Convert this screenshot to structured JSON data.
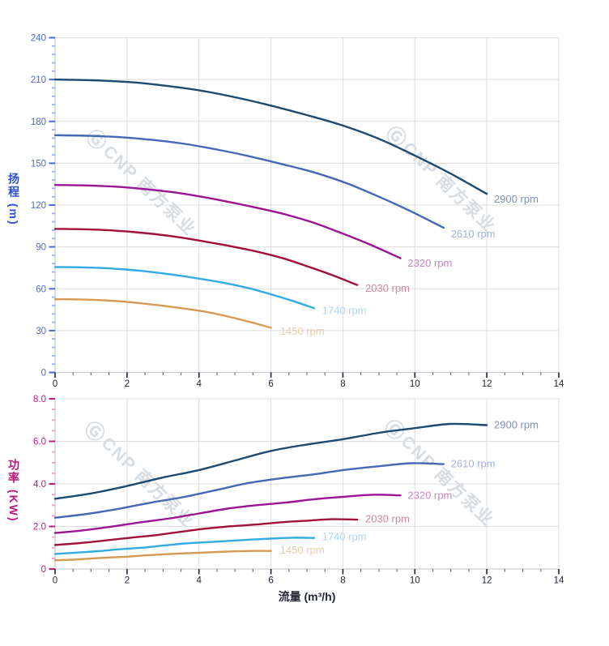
{
  "watermark": {
    "logo": "Ⓖ",
    "text": "CNP 南方泵业"
  },
  "chart_data": [
    {
      "type": "line",
      "name": "head-vs-flow",
      "xlabel": "",
      "ylabel": "扬程 (m)",
      "ylabel_vertical": "扬程 (m)",
      "xlim": [
        0,
        14
      ],
      "ylim": [
        0,
        240
      ],
      "x_ticks": [
        0,
        2,
        4,
        6,
        8,
        10,
        12,
        14
      ],
      "x_tick_labels": [
        "0",
        "2",
        "4",
        "6",
        "8",
        "10",
        "12",
        "14"
      ],
      "y_ticks": [
        0,
        30,
        60,
        90,
        120,
        150,
        180,
        210,
        240
      ],
      "y_tick_labels": [
        "0",
        "30",
        "60",
        "90",
        "120",
        "150",
        "180",
        "210",
        "240"
      ],
      "x_minor_step": 0.5,
      "y_minor_step": 6,
      "grid": true,
      "legend_position": "end-of-curve",
      "colors": {
        "y_title": "#2b50d4",
        "y_tick": "#4a67e0",
        "y_tick_minor": "#9fb0ee",
        "x_tick": "#1b2233",
        "x_tick_minor": "#6a6f78",
        "axis_line": "#c9ccd1",
        "grid": "#dcdcdc",
        "x_title": "#232938"
      },
      "series": [
        {
          "name": "2900 rpm",
          "rpm": 2900,
          "color": "#1b4a73",
          "label_color": "#7d93b5",
          "x": [
            0,
            1,
            2,
            3,
            4,
            5,
            6,
            7,
            8,
            9,
            10,
            11,
            12
          ],
          "y": [
            210,
            209.5,
            208.3,
            205.8,
            202.3,
            197.3,
            191.3,
            184.5,
            177,
            167.5,
            155.5,
            142.5,
            128
          ],
          "label_at": [
            12.2,
            124.5
          ]
        },
        {
          "name": "2610 rpm",
          "rpm": 2610,
          "color": "#4568b6",
          "label_color": "#9fb2e2",
          "x": [
            0,
            0.9,
            1.8,
            2.7,
            3.6,
            4.5,
            5.4,
            6.3,
            7.2,
            8.1,
            9,
            9.9,
            10.8
          ],
          "y": [
            170.1,
            169.7,
            168.7,
            166.7,
            163.9,
            159.8,
            155,
            149.4,
            143.4,
            135.7,
            126,
            115.4,
            103.7
          ],
          "label_at": [
            11.0,
            99.5
          ]
        },
        {
          "name": "2320 rpm",
          "rpm": 2320,
          "color": "#9c1493",
          "label_color": "#c487c6",
          "x": [
            0,
            0.8,
            1.6,
            2.4,
            3.2,
            4,
            4.8,
            5.6,
            6.4,
            7.2,
            8,
            8.8,
            9.6
          ],
          "y": [
            134.4,
            134.1,
            133.3,
            131.7,
            129.5,
            126.3,
            122.4,
            118.1,
            113.3,
            107.2,
            99.5,
            91.2,
            81.9
          ],
          "label_at": [
            9.8,
            78.5
          ]
        },
        {
          "name": "2030 rpm",
          "rpm": 2030,
          "color": "#a21238",
          "label_color": "#c9899d",
          "x": [
            0,
            0.7,
            1.4,
            2.1,
            2.8,
            3.5,
            4.2,
            4.9,
            5.6,
            6.3,
            7,
            7.7,
            8.4
          ],
          "y": [
            102.9,
            102.7,
            102.1,
            100.8,
            99.1,
            96.7,
            93.7,
            90.4,
            86.7,
            82.1,
            76.2,
            69.8,
            62.7
          ],
          "label_at": [
            8.62,
            60.5
          ]
        },
        {
          "name": "1740 rpm",
          "rpm": 1740,
          "color": "#33abe4",
          "label_color": "#a8d6f2",
          "x": [
            0,
            0.6,
            1.2,
            1.8,
            2.4,
            3,
            3.6,
            4.2,
            4.8,
            5.4,
            6,
            6.6,
            7.2
          ],
          "y": [
            75.6,
            75.4,
            75,
            74.1,
            72.8,
            71,
            68.9,
            66.4,
            63.7,
            60.3,
            56,
            51.3,
            46.1
          ],
          "label_at": [
            7.42,
            44.5
          ]
        },
        {
          "name": "1450 rpm",
          "rpm": 1450,
          "color": "#d79a55",
          "label_color": "#e9cda6",
          "x": [
            0,
            0.5,
            1,
            1.5,
            2,
            2.5,
            3,
            3.5,
            4,
            4.5,
            5,
            5.5,
            6
          ],
          "y": [
            52.5,
            52.4,
            52.1,
            51.5,
            50.6,
            49.3,
            47.8,
            46.1,
            44.3,
            41.9,
            38.9,
            35.6,
            32
          ],
          "label_at": [
            6.25,
            29.5
          ]
        }
      ]
    },
    {
      "type": "line",
      "name": "power-vs-flow",
      "xlabel": "流量 (m³/h)",
      "ylabel": "功率 (KW)",
      "ylabel_vertical": "功率 (KW)",
      "xlim": [
        0,
        14
      ],
      "ylim": [
        0,
        8
      ],
      "x_ticks": [
        0,
        2,
        4,
        6,
        8,
        10,
        12,
        14
      ],
      "x_tick_labels": [
        "0",
        "2",
        "4",
        "6",
        "8",
        "10",
        "12",
        "14"
      ],
      "y_ticks": [
        0,
        2,
        4,
        6,
        8
      ],
      "y_tick_labels": [
        "0",
        "2.0",
        "4.0",
        "6.0",
        "8.0"
      ],
      "x_minor_step": 0.5,
      "y_minor_step": 0.5,
      "grid": true,
      "legend_position": "end-of-curve",
      "colors": {
        "y_title": "#bb1878",
        "y_tick": "#c0187a",
        "y_tick_minor": "#ef9ecb",
        "x_tick": "#1b2233",
        "x_tick_minor": "#6a6f78",
        "axis_line": "#c9ccd1",
        "grid": "#dcdcdc",
        "x_title": "#232938"
      },
      "series": [
        {
          "name": "2900 rpm",
          "rpm": 2900,
          "color": "#1b4a73",
          "label_color": "#7d93b5",
          "x": [
            0,
            1,
            2,
            3,
            4,
            5,
            6,
            7,
            8,
            9,
            10,
            11,
            12
          ],
          "y": [
            3.3,
            3.55,
            3.9,
            4.3,
            4.65,
            5.1,
            5.55,
            5.85,
            6.1,
            6.4,
            6.62,
            6.82,
            6.76
          ],
          "label_at": [
            12.2,
            6.78
          ]
        },
        {
          "name": "2610 rpm",
          "rpm": 2610,
          "color": "#4568b6",
          "label_color": "#9fb2e2",
          "x": [
            0,
            0.9,
            1.8,
            2.7,
            3.6,
            4.5,
            5.4,
            6.3,
            7.2,
            8.1,
            9,
            9.9,
            10.8
          ],
          "y": [
            2.41,
            2.59,
            2.84,
            3.13,
            3.39,
            3.72,
            4.05,
            4.27,
            4.45,
            4.67,
            4.83,
            4.97,
            4.93
          ],
          "label_at": [
            11.0,
            4.95
          ]
        },
        {
          "name": "2320 rpm",
          "rpm": 2320,
          "color": "#9c1493",
          "label_color": "#c487c6",
          "x": [
            0,
            0.8,
            1.6,
            2.4,
            3.2,
            4,
            4.8,
            5.6,
            6.4,
            7.2,
            8,
            8.8,
            9.6
          ],
          "y": [
            1.69,
            1.82,
            2,
            2.2,
            2.38,
            2.61,
            2.84,
            3,
            3.12,
            3.28,
            3.39,
            3.49,
            3.46
          ],
          "label_at": [
            9.8,
            3.47
          ]
        },
        {
          "name": "2030 rpm",
          "rpm": 2030,
          "color": "#a21238",
          "label_color": "#c9899d",
          "x": [
            0,
            0.7,
            1.4,
            2.1,
            2.8,
            3.5,
            4.2,
            4.9,
            5.6,
            6.3,
            7,
            7.7,
            8.4
          ],
          "y": [
            1.13,
            1.22,
            1.34,
            1.47,
            1.59,
            1.75,
            1.9,
            2.01,
            2.09,
            2.2,
            2.27,
            2.34,
            2.32
          ],
          "label_at": [
            8.62,
            2.36
          ]
        },
        {
          "name": "1740 rpm",
          "rpm": 1740,
          "color": "#33abe4",
          "label_color": "#a8d6f2",
          "x": [
            0,
            0.6,
            1.2,
            1.8,
            2.4,
            3,
            3.6,
            4.2,
            4.8,
            5.4,
            6,
            6.6,
            7.2
          ],
          "y": [
            0.71,
            0.77,
            0.84,
            0.93,
            1,
            1.1,
            1.2,
            1.26,
            1.32,
            1.38,
            1.43,
            1.47,
            1.46
          ],
          "label_at": [
            7.42,
            1.52
          ]
        },
        {
          "name": "1450 rpm",
          "rpm": 1450,
          "color": "#d79a55",
          "label_color": "#e9cda6",
          "x": [
            0,
            0.5,
            1,
            1.5,
            2,
            2.5,
            3,
            3.5,
            4,
            4.5,
            5,
            5.5,
            6
          ],
          "y": [
            0.41,
            0.44,
            0.49,
            0.54,
            0.58,
            0.64,
            0.69,
            0.73,
            0.76,
            0.8,
            0.83,
            0.85,
            0.85
          ],
          "label_at": [
            6.25,
            0.9
          ]
        }
      ]
    }
  ]
}
